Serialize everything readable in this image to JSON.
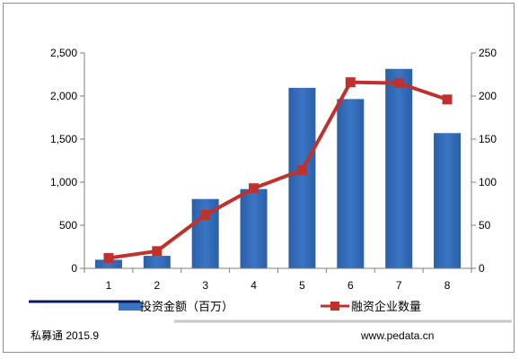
{
  "chart_data": {
    "type": "bar+line",
    "categories": [
      "1",
      "2",
      "3",
      "4",
      "5",
      "6",
      "7",
      "8"
    ],
    "series": [
      {
        "name": "投资金额（百万）",
        "type": "bar",
        "axis": "left",
        "color": "#3a75c4",
        "values": [
          100,
          145,
          805,
          920,
          2095,
          1965,
          2315,
          1570
        ]
      },
      {
        "name": "融资企业数量",
        "type": "line",
        "axis": "right",
        "color": "#c0312d",
        "values": [
          12,
          20,
          62,
          93,
          114,
          216,
          215,
          196
        ]
      }
    ],
    "ylim_left": [
      0,
      2500
    ],
    "ylim_right": [
      0,
      250
    ],
    "yticks_left": [
      "0",
      "500",
      "1,000",
      "1,500",
      "2,000",
      "2,500"
    ],
    "yticks_right": [
      "0",
      "50",
      "100",
      "150",
      "200",
      "250"
    ],
    "grid": false,
    "legend_position": "bottom"
  },
  "footer": {
    "source_left": "私募通 2015.9",
    "source_right": "www.pedata.cn"
  }
}
